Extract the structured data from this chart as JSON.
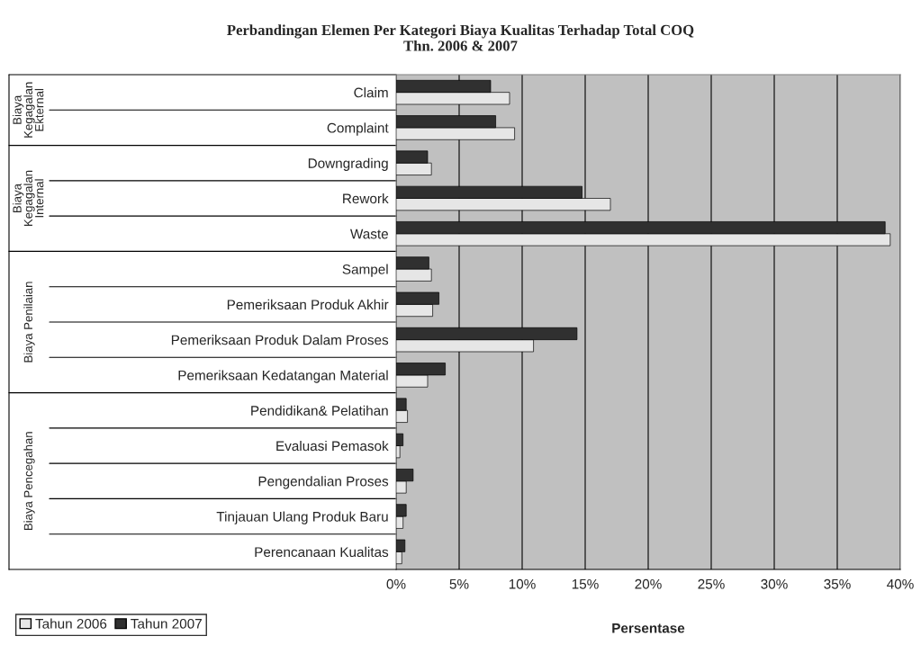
{
  "chart_data": {
    "type": "bar",
    "orientation": "horizontal",
    "title": "Perbandingan Elemen Per Kategori Biaya Kualitas Terhadap Total COQ\nThn. 2006 & 2007",
    "xlabel": "Persentase",
    "categories": [
      "Claim",
      "Complaint",
      "Downgrading",
      "Rework",
      "Waste",
      "Sampel",
      "Pemeriksaan Produk Akhir",
      "Pemeriksaan Produk Dalam Proses",
      "Pemeriksaan Kedatangan Material",
      "Pendidikan& Pelatihan",
      "Evaluasi Pemasok",
      "Pengendalian Proses",
      "Tinjauan Ulang Produk Baru",
      "Perencanaan Kualitas"
    ],
    "series": [
      {
        "name": "Tahun 2006",
        "color": "#e6e6e6",
        "values": [
          9.0,
          9.4,
          2.8,
          17.0,
          39.2,
          2.8,
          2.9,
          10.9,
          2.5,
          0.9,
          0.3,
          0.8,
          0.55,
          0.45
        ]
      },
      {
        "name": "Tahun 2007",
        "color": "#303030",
        "values": [
          7.5,
          7.9,
          2.5,
          14.75,
          38.8,
          2.6,
          3.4,
          14.35,
          3.9,
          0.8,
          0.55,
          1.35,
          0.8,
          0.7
        ]
      }
    ],
    "xlim": [
      0,
      40
    ],
    "xticks": [
      {
        "value": 0,
        "label": "0%"
      },
      {
        "value": 5,
        "label": "5%"
      },
      {
        "value": 10,
        "label": "10%"
      },
      {
        "value": 15,
        "label": "15%"
      },
      {
        "value": 20,
        "label": "20%"
      },
      {
        "value": 25,
        "label": "25%"
      },
      {
        "value": 30,
        "label": "30%"
      },
      {
        "value": 35,
        "label": "35%"
      },
      {
        "value": 40,
        "label": "40%"
      }
    ],
    "grid": "x",
    "legend": "bottom left",
    "annotations": [
      "Biaya Kegagalan Ekternal",
      "Biaya Kegagalan Internal",
      "Biaya Penilaian",
      "Biaya Pencegahan"
    ]
  }
}
